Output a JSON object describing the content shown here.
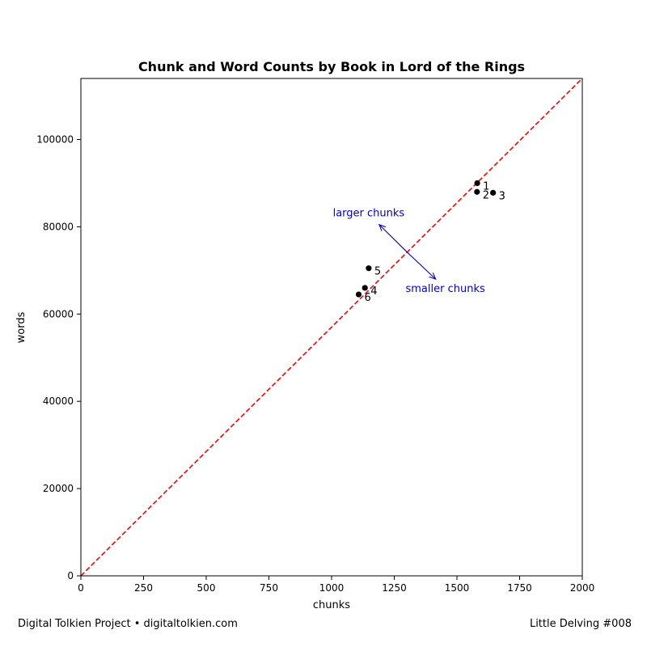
{
  "chart_data": {
    "type": "scatter",
    "title": "Chunk and Word Counts by Book in Lord of the Rings",
    "xlabel": "chunks",
    "ylabel": "words",
    "xlim": [
      0,
      2000
    ],
    "ylim": [
      0,
      114000
    ],
    "xticks": [
      0,
      250,
      500,
      750,
      1000,
      1250,
      1500,
      1750,
      2000
    ],
    "yticks": [
      0,
      20000,
      40000,
      60000,
      80000,
      100000
    ],
    "grid": false,
    "series": [
      {
        "points": [
          {
            "label": "1",
            "x": 1581,
            "y": 90000
          },
          {
            "label": "2",
            "x": 1580,
            "y": 88000
          },
          {
            "label": "3",
            "x": 1644,
            "y": 87800
          },
          {
            "label": "4",
            "x": 1133,
            "y": 66000
          },
          {
            "label": "5",
            "x": 1148,
            "y": 70500
          },
          {
            "label": "6",
            "x": 1108,
            "y": 64500
          }
        ],
        "color": "#000000"
      }
    ],
    "reference_line": {
      "from": [
        0,
        0
      ],
      "to": [
        2000,
        114000
      ],
      "color": "#ff0000",
      "style": "dashed"
    },
    "annotations": [
      {
        "text": "larger chunks",
        "arrow_from": [
          1300,
          74250
        ],
        "arrow_to": [
          1190,
          80500
        ],
        "color": "#0000cc"
      },
      {
        "text": "smaller chunks",
        "arrow_from": [
          1300,
          74250
        ],
        "arrow_to": [
          1415,
          68000
        ],
        "color": "#0000cc"
      }
    ]
  },
  "footer": {
    "left": "Digital Tolkien Project • digitaltolkien.com",
    "right": "Little Delving #008"
  }
}
